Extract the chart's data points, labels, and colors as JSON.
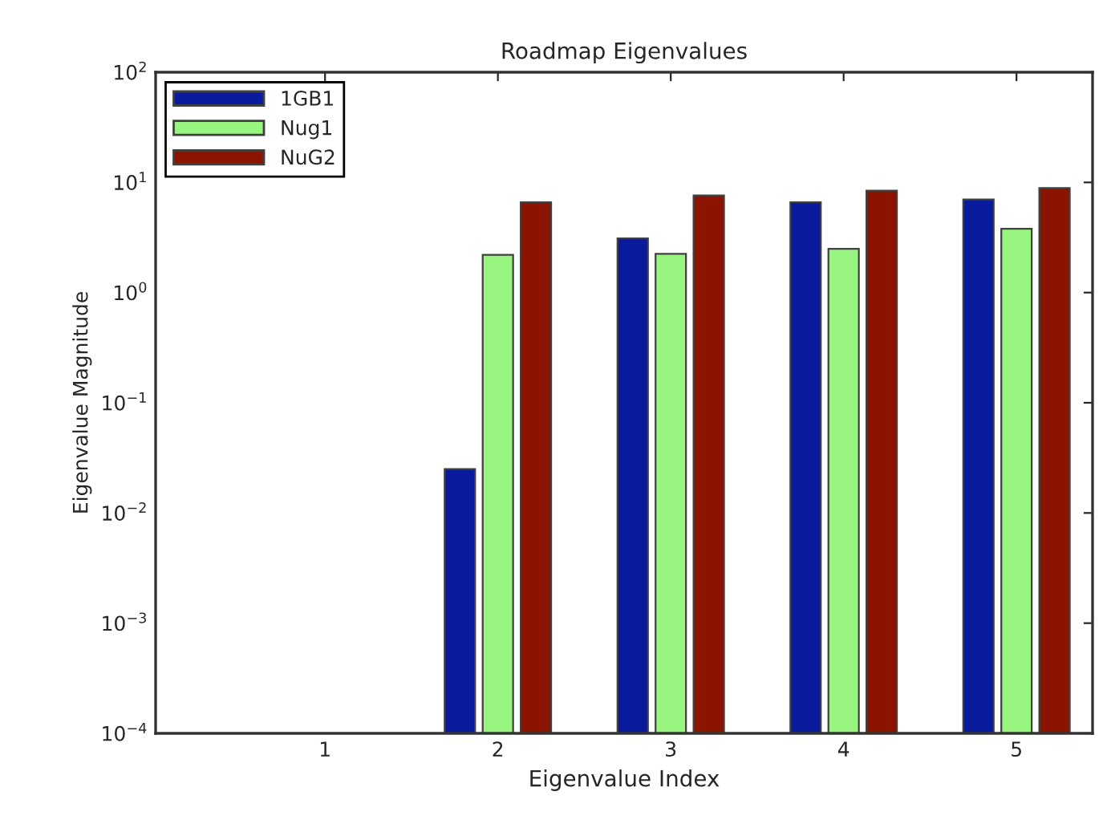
{
  "chart_data": {
    "type": "bar",
    "title": "Roadmap Eigenvalues",
    "xlabel": "Eigenvalue Index",
    "ylabel": "Eigenvalue Magnitude",
    "categories": [
      "1",
      "2",
      "3",
      "4",
      "5"
    ],
    "series": [
      {
        "name": "1GB1",
        "color": "#0a1a9c",
        "values": [
          null,
          0.025,
          3.1,
          6.6,
          7.0
        ]
      },
      {
        "name": "Nug1",
        "color": "#98f57f",
        "values": [
          null,
          2.2,
          2.25,
          2.5,
          3.8
        ]
      },
      {
        "name": "NuG2",
        "color": "#8b1400",
        "values": [
          null,
          6.6,
          7.6,
          8.4,
          8.9
        ]
      }
    ],
    "log": "y",
    "ylim": [
      0.0001,
      100
    ],
    "yticks": [
      {
        "value": 0.0001,
        "label": "10$^{−4}$"
      },
      {
        "value": 0.001,
        "label": "10$^{−3}$"
      },
      {
        "value": 0.01,
        "label": "10$^{−2}$"
      },
      {
        "value": 0.1,
        "label": "10$^{−1}$"
      },
      {
        "value": 1,
        "label": "10$^{0}$"
      },
      {
        "value": 10,
        "label": "10$^{1}$"
      },
      {
        "value": 100,
        "label": "10$^{2}$"
      }
    ],
    "legend": "top left",
    "grid": false
  }
}
